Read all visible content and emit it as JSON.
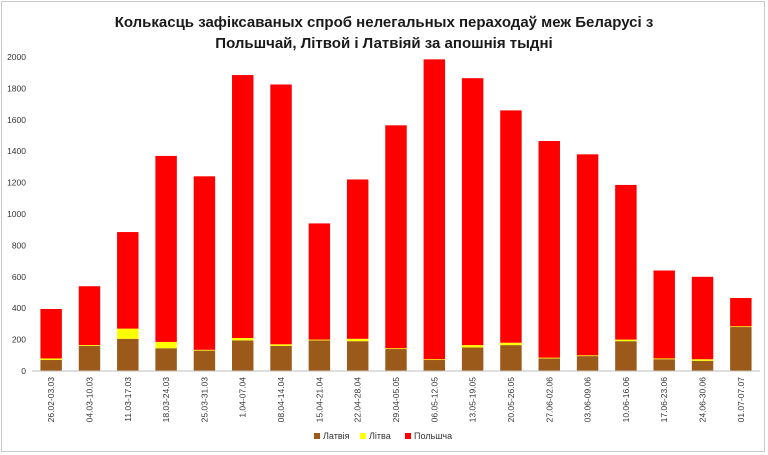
{
  "chart_data": {
    "type": "bar",
    "stacked": true,
    "title_lines": [
      "Колькасць зафіксаваных спроб нелегальных пераходаў меж Беларусі з",
      "Польшчай, Літвой і Латвіяй за апошнія тыдні"
    ],
    "categories": [
      "26.02-03.03",
      "04.03-10.03",
      "11.03-17.03",
      "18.03-24.03",
      "25.03-31.03",
      "1.04-07.04",
      "08.04-14.04",
      "15.04-21.04",
      "22.04-28.04",
      "29.04-05.05",
      "06.05-12.05",
      "13.05-19.05",
      "20.05-26.05",
      "27.06-02.06",
      "03.06-09.06",
      "10.06-16.06",
      "17.06-23.06",
      "24.06-30.06",
      "01.07-07.07"
    ],
    "series": [
      {
        "name": "Латвія",
        "color": "#9b5a1a",
        "values": [
          70,
          160,
          205,
          145,
          130,
          195,
          160,
          195,
          190,
          140,
          70,
          150,
          165,
          80,
          95,
          190,
          75,
          65,
          280
        ]
      },
      {
        "name": "Літва",
        "color": "#ffff00",
        "values": [
          10,
          5,
          65,
          40,
          5,
          15,
          10,
          5,
          15,
          5,
          5,
          15,
          15,
          5,
          5,
          10,
          5,
          10,
          5
        ]
      },
      {
        "name": "Польшча",
        "color": "#ff0000",
        "values": [
          315,
          375,
          615,
          1185,
          1105,
          1675,
          1655,
          740,
          1015,
          1420,
          1910,
          1700,
          1480,
          1380,
          1280,
          985,
          560,
          525,
          180
        ]
      }
    ],
    "ylim": [
      0,
      2000
    ],
    "yticks": [
      0,
      200,
      400,
      600,
      800,
      1000,
      1200,
      1400,
      1600,
      1800,
      2000
    ],
    "grid": false,
    "legend_position": "bottom"
  }
}
